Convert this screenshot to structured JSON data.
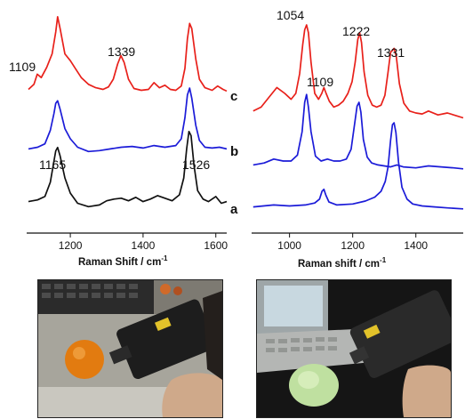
{
  "chart_data": [
    {
      "type": "line",
      "xlabel": "Raman Shift / cm",
      "xlabel_sup": "-1",
      "xlim": [
        1080,
        1630
      ],
      "xticks": [
        1200,
        1400,
        1600
      ],
      "tick_labels": [
        "1200",
        "1400",
        "1600"
      ],
      "curve_labels": [
        "c",
        "b",
        "a"
      ],
      "peak_labels": [
        "1109",
        "1339",
        "1165",
        "1526"
      ],
      "series": [
        {
          "label": "c",
          "color": "#e8201a",
          "x": [
            1085,
            1100,
            1109,
            1120,
            1135,
            1150,
            1160,
            1165,
            1172,
            1185,
            1200,
            1215,
            1230,
            1250,
            1270,
            1290,
            1305,
            1318,
            1330,
            1339,
            1348,
            1360,
            1375,
            1395,
            1415,
            1430,
            1445,
            1460,
            1475,
            1490,
            1505,
            1515,
            1522,
            1528,
            1534,
            1545,
            1555,
            1570,
            1590,
            1605,
            1620,
            1630
          ],
          "y": [
            0.1,
            0.16,
            0.28,
            0.24,
            0.36,
            0.52,
            0.78,
            0.96,
            0.82,
            0.52,
            0.44,
            0.34,
            0.24,
            0.16,
            0.12,
            0.1,
            0.13,
            0.22,
            0.4,
            0.5,
            0.42,
            0.22,
            0.11,
            0.09,
            0.1,
            0.18,
            0.12,
            0.15,
            0.1,
            0.09,
            0.14,
            0.35,
            0.7,
            0.88,
            0.82,
            0.46,
            0.22,
            0.12,
            0.09,
            0.14,
            0.1,
            0.08
          ]
        },
        {
          "label": "b",
          "color": "#1b1bd8",
          "x": [
            1085,
            1110,
            1130,
            1145,
            1155,
            1160,
            1165,
            1172,
            1185,
            1200,
            1220,
            1250,
            1280,
            1310,
            1340,
            1370,
            1400,
            1430,
            1460,
            1490,
            1505,
            1515,
            1522,
            1528,
            1534,
            1545,
            1555,
            1570,
            1590,
            1610,
            1630
          ],
          "y": [
            0.08,
            0.1,
            0.14,
            0.3,
            0.5,
            0.62,
            0.65,
            0.55,
            0.32,
            0.2,
            0.1,
            0.05,
            0.06,
            0.08,
            0.1,
            0.11,
            0.09,
            0.12,
            0.1,
            0.12,
            0.2,
            0.45,
            0.72,
            0.8,
            0.68,
            0.36,
            0.18,
            0.1,
            0.09,
            0.1,
            0.08
          ]
        },
        {
          "label": "a",
          "color": "#111111",
          "x": [
            1085,
            1110,
            1130,
            1145,
            1155,
            1160,
            1165,
            1172,
            1185,
            1200,
            1220,
            1250,
            1280,
            1300,
            1320,
            1340,
            1360,
            1380,
            1400,
            1420,
            1440,
            1460,
            1480,
            1500,
            1512,
            1520,
            1526,
            1532,
            1540,
            1550,
            1565,
            1580,
            1600,
            1615,
            1630
          ],
          "y": [
            0.12,
            0.14,
            0.18,
            0.35,
            0.6,
            0.72,
            0.76,
            0.66,
            0.4,
            0.22,
            0.1,
            0.06,
            0.08,
            0.13,
            0.15,
            0.16,
            0.13,
            0.17,
            0.12,
            0.15,
            0.19,
            0.16,
            0.13,
            0.2,
            0.4,
            0.75,
            0.95,
            0.9,
            0.55,
            0.25,
            0.15,
            0.12,
            0.18,
            0.1,
            0.12
          ]
        }
      ]
    },
    {
      "type": "line",
      "xlabel": "Raman shift / cm",
      "xlabel_sup": "-1",
      "xlim": [
        880,
        1550
      ],
      "xticks": [
        1000,
        1200,
        1400
      ],
      "tick_labels": [
        "1000",
        "1200",
        "1400"
      ],
      "peak_labels": [
        "1054",
        "1109",
        "1222",
        "1331"
      ],
      "series": [
        {
          "label": "top",
          "color": "#e8201a",
          "x": [
            885,
            910,
            935,
            960,
            985,
            1005,
            1020,
            1032,
            1042,
            1048,
            1054,
            1060,
            1068,
            1080,
            1092,
            1102,
            1109,
            1116,
            1126,
            1140,
            1155,
            1170,
            1185,
            1198,
            1208,
            1216,
            1222,
            1228,
            1236,
            1248,
            1262,
            1276,
            1290,
            1302,
            1312,
            1320,
            1331,
            1338,
            1348,
            1362,
            1380,
            1400,
            1420,
            1440,
            1470,
            1500,
            1530,
            1550
          ],
          "y": [
            0.12,
            0.16,
            0.26,
            0.36,
            0.3,
            0.24,
            0.3,
            0.5,
            0.8,
            0.95,
            1.0,
            0.92,
            0.62,
            0.3,
            0.24,
            0.3,
            0.36,
            0.3,
            0.22,
            0.16,
            0.18,
            0.22,
            0.3,
            0.42,
            0.62,
            0.85,
            0.92,
            0.82,
            0.52,
            0.28,
            0.18,
            0.16,
            0.18,
            0.28,
            0.52,
            0.72,
            0.76,
            0.68,
            0.4,
            0.2,
            0.12,
            0.1,
            0.09,
            0.12,
            0.08,
            0.1,
            0.07,
            0.05
          ]
        },
        {
          "label": "middle",
          "color": "#1b1bd8",
          "x": [
            885,
            920,
            950,
            980,
            1005,
            1025,
            1040,
            1048,
            1054,
            1060,
            1068,
            1082,
            1100,
            1120,
            1140,
            1160,
            1180,
            1195,
            1205,
            1214,
            1220,
            1226,
            1234,
            1246,
            1260,
            1280,
            1300,
            1320,
            1340,
            1360,
            1400,
            1440,
            1480,
            1520,
            1550
          ],
          "y": [
            0.06,
            0.08,
            0.12,
            0.1,
            0.1,
            0.16,
            0.4,
            0.7,
            0.78,
            0.65,
            0.4,
            0.15,
            0.1,
            0.12,
            0.1,
            0.1,
            0.12,
            0.22,
            0.45,
            0.66,
            0.7,
            0.6,
            0.32,
            0.14,
            0.08,
            0.06,
            0.05,
            0.04,
            0.06,
            0.04,
            0.03,
            0.05,
            0.04,
            0.03,
            0.02
          ]
        },
        {
          "label": "bottom",
          "color": "#1b1bd8",
          "x": [
            885,
            950,
            1000,
            1050,
            1080,
            1095,
            1103,
            1109,
            1115,
            1125,
            1150,
            1200,
            1240,
            1270,
            1290,
            1303,
            1312,
            1320,
            1326,
            1331,
            1337,
            1345,
            1356,
            1372,
            1390,
            1420,
            1460,
            1500,
            1550
          ],
          "y": [
            0.04,
            0.06,
            0.05,
            0.06,
            0.08,
            0.12,
            0.2,
            0.22,
            0.16,
            0.09,
            0.06,
            0.07,
            0.1,
            0.14,
            0.2,
            0.3,
            0.45,
            0.72,
            0.88,
            0.9,
            0.8,
            0.5,
            0.24,
            0.12,
            0.07,
            0.05,
            0.04,
            0.03,
            0.02
          ]
        }
      ]
    }
  ],
  "photos": [
    {
      "subject": "orange",
      "device": "handheld Raman spectrometer"
    },
    {
      "subject": "cabbage",
      "device": "handheld Raman spectrometer"
    }
  ]
}
